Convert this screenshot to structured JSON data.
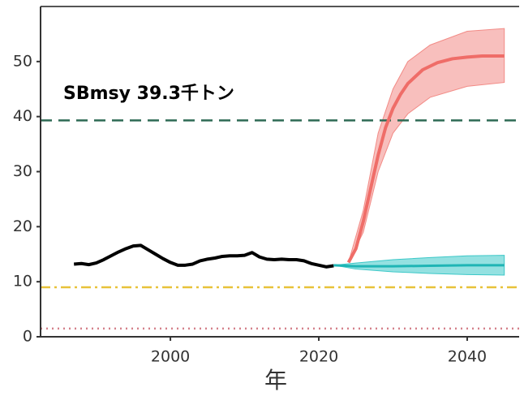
{
  "chart_data": {
    "type": "line",
    "xlabel": "年",
    "annotation": "SBmsy 39.3千トン",
    "xlim": [
      1982.5,
      2047
    ],
    "ylim": [
      0,
      60
    ],
    "xticks": [
      2000,
      2020,
      2040
    ],
    "yticks": [
      0,
      10,
      20,
      30,
      40,
      50
    ],
    "hlines": [
      {
        "value": 39.3,
        "color": "#2e6b55",
        "dash": "14 8"
      },
      {
        "value": 9,
        "color": "#e8c23a",
        "dash": "12 5 3 5"
      },
      {
        "value": 1.5,
        "color": "#d4808a",
        "dash": "2 5"
      }
    ],
    "bands": [
      {
        "color": "#f28b86",
        "x": [
          2024,
          2026,
          2028,
          2030,
          2032,
          2035,
          2040,
          2045
        ],
        "lower": [
          13.5,
          19,
          30,
          37,
          40.5,
          43.5,
          45.5,
          46.2
        ],
        "upper": [
          13.5,
          23,
          37,
          45,
          50,
          53,
          55.5,
          56
        ]
      },
      {
        "color": "#3cc8c8",
        "x": [
          2022,
          2025,
          2030,
          2035,
          2040,
          2045
        ],
        "lower": [
          13,
          12.3,
          11.8,
          11.5,
          11.3,
          11.2
        ],
        "upper": [
          13,
          13.4,
          14,
          14.4,
          14.7,
          14.8
        ]
      }
    ],
    "series": [
      {
        "color": "#000000",
        "width": 4,
        "x": [
          1987,
          1988,
          1989,
          1990,
          1991,
          1992,
          1993,
          1994,
          1995,
          1996,
          1997,
          1998,
          1999,
          2000,
          2001,
          2002,
          2003,
          2004,
          2005,
          2006,
          2007,
          2008,
          2009,
          2010,
          2011,
          2012,
          2013,
          2014,
          2015,
          2016,
          2017,
          2018,
          2019,
          2020,
          2021,
          2022
        ],
        "values": [
          13.2,
          13.3,
          13.1,
          13.4,
          14,
          14.7,
          15.4,
          16,
          16.5,
          16.6,
          15.8,
          15,
          14.2,
          13.5,
          13,
          13,
          13.2,
          13.8,
          14.1,
          14.3,
          14.6,
          14.7,
          14.7,
          14.8,
          15.3,
          14.5,
          14.1,
          14,
          14.1,
          14,
          14,
          13.8,
          13.3,
          13,
          12.7,
          12.9
        ]
      },
      {
        "color": "#ef6d68",
        "width": 4,
        "x": [
          2024,
          2025,
          2026,
          2027,
          2028,
          2029,
          2030,
          2031,
          2032,
          2034,
          2036,
          2038,
          2040,
          2042,
          2045
        ],
        "values": [
          13.5,
          16,
          21,
          27,
          33,
          38,
          41.5,
          44,
          46,
          48.5,
          49.8,
          50.5,
          50.8,
          51,
          51
        ]
      },
      {
        "color": "#1fb5b5",
        "width": 3,
        "x": [
          2022,
          2025,
          2030,
          2035,
          2040,
          2045
        ],
        "values": [
          13,
          12.8,
          12.8,
          12.9,
          13,
          13
        ]
      }
    ]
  }
}
